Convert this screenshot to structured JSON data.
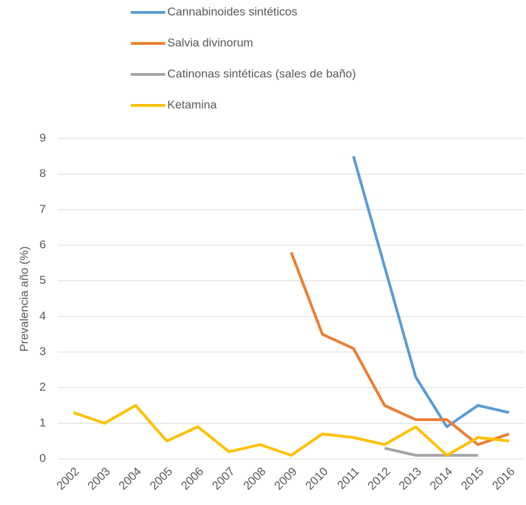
{
  "chart_data": {
    "type": "line",
    "y_label": "Prevalencia año (%)",
    "categories": [
      "2002",
      "2003",
      "2004",
      "2005",
      "2006",
      "2007",
      "2008",
      "2009",
      "2010",
      "2011",
      "2012",
      "2013",
      "2014",
      "2015",
      "2016"
    ],
    "series": [
      {
        "name": "Cannabinoides sintéticos",
        "color": "#5b9bd5",
        "values": [
          null,
          null,
          null,
          null,
          null,
          null,
          null,
          null,
          null,
          8.5,
          5.4,
          2.3,
          0.9,
          1.5,
          1.3
        ]
      },
      {
        "name": "Salvia divinorum",
        "color": "#ed7d31",
        "values": [
          null,
          null,
          null,
          null,
          null,
          null,
          null,
          5.8,
          3.5,
          3.1,
          1.5,
          1.1,
          1.1,
          0.4,
          0.7
        ]
      },
      {
        "name": "Catinonas sintéticas (sales de baño)",
        "color": "#a5a5a5",
        "values": [
          null,
          null,
          null,
          null,
          null,
          null,
          null,
          null,
          null,
          null,
          0.3,
          0.1,
          0.1,
          0.1,
          null
        ]
      },
      {
        "name": "Ketamina",
        "color": "#ffc000",
        "values": [
          1.3,
          1.0,
          1.5,
          0.5,
          0.9,
          0.2,
          0.4,
          0.1,
          0.7,
          0.6,
          0.4,
          0.9,
          0.1,
          0.6,
          0.5
        ]
      }
    ],
    "ylim": [
      0,
      9
    ],
    "yticks": [
      0,
      1,
      2,
      3,
      4,
      5,
      6,
      7,
      8,
      9
    ],
    "grid": true,
    "legend": "top"
  }
}
